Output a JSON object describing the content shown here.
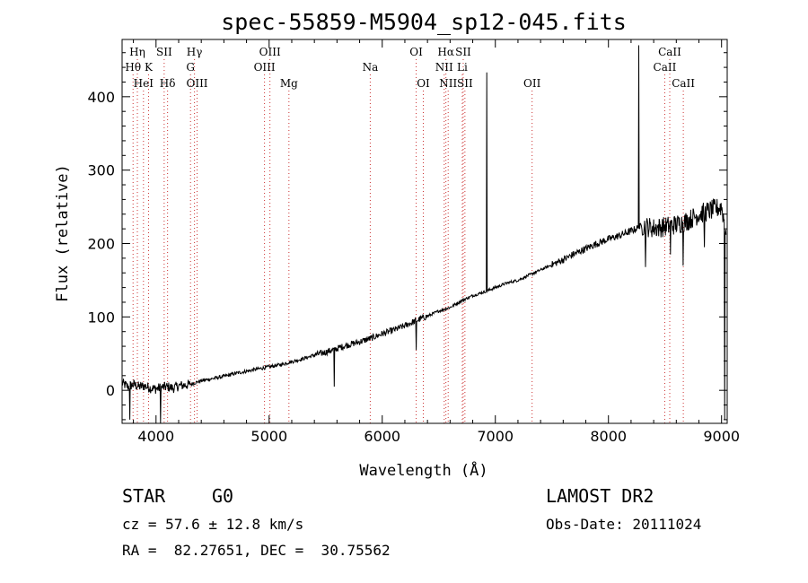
{
  "chart_data": {
    "type": "line",
    "title": "spec-55859-M5904_sp12-045.fits",
    "xlabel": "Wavelength (Å)",
    "ylabel": "Flux (relative)",
    "xlim": [
      3700,
      9050
    ],
    "ylim": [
      -45,
      478
    ],
    "x_ticks": [
      4000,
      5000,
      6000,
      7000,
      8000,
      9000
    ],
    "y_ticks": [
      0,
      100,
      200,
      300,
      400
    ],
    "grid": false,
    "spectrum": {
      "x": [
        3700,
        3750,
        3800,
        3850,
        3900,
        3950,
        4000,
        4050,
        4100,
        4150,
        4200,
        4300,
        4400,
        4500,
        4600,
        4700,
        4800,
        4900,
        5000,
        5100,
        5200,
        5300,
        5400,
        5500,
        5600,
        5700,
        5800,
        5900,
        6000,
        6100,
        6200,
        6300,
        6400,
        6500,
        6600,
        6700,
        6800,
        6900,
        7000,
        7100,
        7200,
        7300,
        7400,
        7500,
        7600,
        7700,
        7800,
        7900,
        8000,
        8100,
        8200,
        8300,
        8400,
        8500,
        8600,
        8700,
        8800,
        8900,
        9000,
        9050
      ],
      "y": [
        10,
        5,
        8,
        5,
        6,
        3,
        2,
        4,
        5,
        3,
        6,
        8,
        13,
        16,
        19,
        23,
        26,
        29,
        32,
        35,
        39,
        43,
        48,
        52,
        57,
        62,
        66,
        71,
        77,
        82,
        88,
        95,
        101,
        108,
        113,
        122,
        129,
        134,
        140,
        146,
        150,
        157,
        164,
        171,
        178,
        186,
        193,
        200,
        206,
        211,
        217,
        224,
        221,
        223,
        226,
        231,
        240,
        245,
        250,
        210
      ],
      "emission_spikes": [
        {
          "x": 6924,
          "y": 433
        },
        {
          "x": 8270,
          "y": 470
        }
      ],
      "absorption_dips": [
        {
          "x": 3770,
          "y": -40
        },
        {
          "x": 4040,
          "y": -45
        },
        {
          "x": 5577,
          "y": 5
        },
        {
          "x": 6300,
          "y": 55
        },
        {
          "x": 8330,
          "y": 168
        },
        {
          "x": 8550,
          "y": 185
        },
        {
          "x": 8660,
          "y": 170
        },
        {
          "x": 8850,
          "y": 195
        },
        {
          "x": 9030,
          "y": -40
        }
      ]
    },
    "lines": [
      {
        "label": "Hη",
        "x": 3835,
        "row": 1
      },
      {
        "label": "Hθ",
        "x": 3797,
        "row": 2
      },
      {
        "label": "K",
        "x": 3934,
        "row": 2
      },
      {
        "label": "HeI",
        "x": 3889,
        "row": 3
      },
      {
        "label": "SII",
        "x": 4072,
        "row": 1
      },
      {
        "label": "Hδ",
        "x": 4102,
        "row": 3
      },
      {
        "label": "Hγ",
        "x": 4340,
        "row": 1
      },
      {
        "label": "G",
        "x": 4305,
        "row": 2
      },
      {
        "label": "OIII",
        "x": 4363,
        "row": 3
      },
      {
        "label": "OIII",
        "x": 5007,
        "row": 1
      },
      {
        "label": "OIII",
        "x": 4959,
        "row": 2
      },
      {
        "label": "Mg",
        "x": 5175,
        "row": 3
      },
      {
        "label": "Na",
        "x": 5894,
        "row": 2
      },
      {
        "label": "OI",
        "x": 6300,
        "row": 1
      },
      {
        "label": "OI",
        "x": 6363,
        "row": 3
      },
      {
        "label": "Hα",
        "x": 6563,
        "row": 1
      },
      {
        "label": "SII",
        "x": 6716,
        "row": 1
      },
      {
        "label": "NII",
        "x": 6548,
        "row": 2
      },
      {
        "label": "Li",
        "x": 6708,
        "row": 2
      },
      {
        "label": "NII",
        "x": 6583,
        "row": 3
      },
      {
        "label": "SII",
        "x": 6731,
        "row": 3
      },
      {
        "label": "OII",
        "x": 7325,
        "row": 3
      },
      {
        "label": "CaII",
        "x": 8542,
        "row": 1
      },
      {
        "label": "CaII",
        "x": 8498,
        "row": 2
      },
      {
        "label": "CaII",
        "x": 8662,
        "row": 3
      }
    ],
    "colors": {
      "spectrum": "#000000",
      "line_marker": "#cc3333",
      "axes": "#000000"
    }
  },
  "info": {
    "class": "STAR",
    "subclass": "G0",
    "survey": "LAMOST DR2",
    "velocity": "cz = 57.6 ± 12.8 km/s",
    "obs_date": "Obs-Date: 20111024",
    "coords": "RA =  82.27651, DEC =  30.75562"
  }
}
